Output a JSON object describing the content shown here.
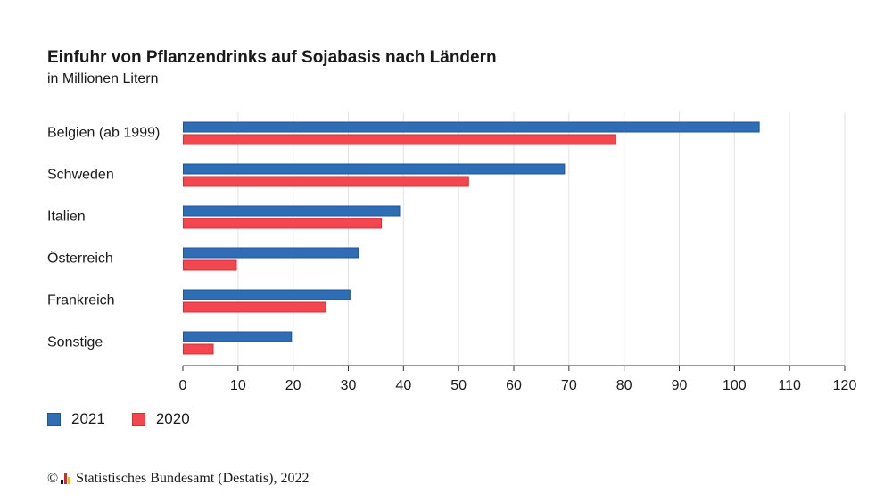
{
  "title": "Einfuhr von Pflanzendrinks auf Sojabasis nach Ländern",
  "subtitle": "in Millionen Litern",
  "colors": {
    "2021": "#2f6db5",
    "2020": "#f4464f",
    "grid": "#e2e2e2",
    "axis": "#333333"
  },
  "chart_data": {
    "type": "bar",
    "orientation": "horizontal",
    "categories": [
      "Belgien (ab 1999)",
      "Schweden",
      "Italien",
      "Österreich",
      "Frankreich",
      "Sonstige"
    ],
    "series": [
      {
        "name": "2021",
        "values": [
          104.5,
          69.2,
          39.3,
          31.8,
          30.3,
          19.7
        ]
      },
      {
        "name": "2020",
        "values": [
          78.5,
          51.8,
          36.0,
          9.7,
          25.9,
          5.5
        ]
      }
    ],
    "xlim": [
      0,
      120
    ],
    "xticks": [
      0,
      10,
      20,
      30,
      40,
      50,
      60,
      70,
      80,
      90,
      100,
      110,
      120
    ],
    "grid": true,
    "legend_position": "bottom-left"
  },
  "footer": {
    "copyright_symbol": "©",
    "source": "Statistisches Bundesamt (Destatis), 2022"
  }
}
